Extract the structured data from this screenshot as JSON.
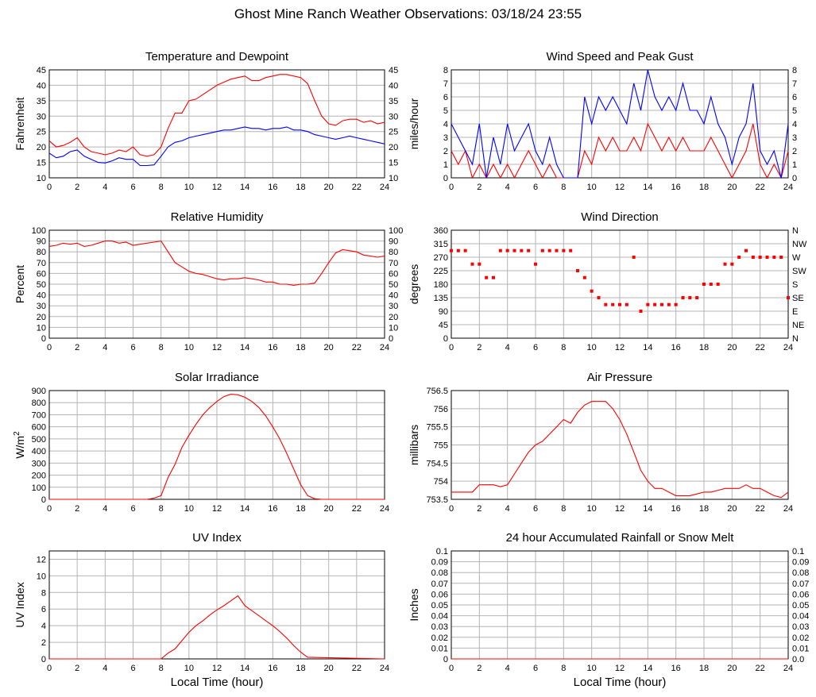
{
  "page_title": "Ghost Mine Ranch Weather Observations: 03/18/24 23:55",
  "x_axis": {
    "label": "Local Time (hour)",
    "ticks": [
      0,
      2,
      4,
      6,
      8,
      10,
      12,
      14,
      16,
      18,
      20,
      22,
      24
    ]
  },
  "colors": {
    "series_red": "#ff0000",
    "series_blue": "#0000ff",
    "grid": "#b4b4b4"
  },
  "chart_data": [
    {
      "id": "temperature",
      "type": "line",
      "title": "Temperature and Dewpoint",
      "ylabel": "Fahrenheit",
      "ylim": [
        10,
        45
      ],
      "yticks": [
        10,
        15,
        20,
        25,
        30,
        35,
        40,
        45
      ],
      "right_ticks": [
        "10",
        "15",
        "20",
        "25",
        "30",
        "35",
        "40",
        "45"
      ],
      "series": [
        {
          "name": "Temperature",
          "color": "#ff0000",
          "x": [
            0,
            0.5,
            1,
            1.5,
            2,
            2.5,
            3,
            3.5,
            4,
            4.5,
            5,
            5.5,
            6,
            6.5,
            7,
            7.5,
            8,
            8.5,
            9,
            9.5,
            10,
            10.5,
            11,
            11.5,
            12,
            12.5,
            13,
            13.5,
            14,
            14.5,
            15,
            15.5,
            16,
            16.5,
            17,
            17.5,
            18,
            18.5,
            19,
            19.5,
            20,
            20.5,
            21,
            21.5,
            22,
            22.5,
            23,
            23.5,
            24
          ],
          "y": [
            22,
            20,
            20.5,
            21.5,
            23,
            20,
            18.5,
            18,
            17.5,
            18,
            19,
            18.5,
            20,
            17.5,
            17,
            17.5,
            20,
            26,
            31,
            31,
            35,
            35.5,
            37,
            38.5,
            40,
            41,
            42,
            42.5,
            43,
            41.5,
            41.5,
            42.5,
            43,
            43.5,
            43.5,
            43,
            42.5,
            40.5,
            35,
            30,
            27.5,
            27,
            28.5,
            29,
            29,
            28,
            28.5,
            27.5,
            28
          ]
        },
        {
          "name": "Dewpoint",
          "color": "#0000ff",
          "x": [
            0,
            0.5,
            1,
            1.5,
            2,
            2.5,
            3,
            3.5,
            4,
            4.5,
            5,
            5.5,
            6,
            6.5,
            7,
            7.5,
            8,
            8.5,
            9,
            9.5,
            10,
            10.5,
            11,
            11.5,
            12,
            12.5,
            13,
            13.5,
            14,
            14.5,
            15,
            15.5,
            16,
            16.5,
            17,
            17.5,
            18,
            18.5,
            19,
            19.5,
            20,
            20.5,
            21,
            21.5,
            22,
            22.5,
            23,
            23.5,
            24
          ],
          "y": [
            18,
            16.5,
            17,
            18.5,
            19,
            17,
            16,
            15,
            14.8,
            15.5,
            16.5,
            16,
            16,
            14,
            14,
            14.2,
            17,
            20,
            21.5,
            22,
            23,
            23.5,
            24,
            24.5,
            25,
            25.5,
            25.5,
            26,
            26.5,
            26,
            26,
            25.5,
            26,
            26,
            26.5,
            25.5,
            25.5,
            25,
            24,
            23.5,
            23,
            22.5,
            23,
            23.5,
            23,
            22.5,
            22,
            21.5,
            21
          ]
        }
      ]
    },
    {
      "id": "wind-speed",
      "type": "line",
      "title": "Wind Speed and Peak Gust",
      "ylabel": "miles/hour",
      "ylim": [
        0,
        8
      ],
      "yticks": [
        0,
        1,
        2,
        3,
        4,
        5,
        6,
        7,
        8
      ],
      "right_ticks": [
        "0",
        "1",
        "2",
        "3",
        "4",
        "5",
        "6",
        "7",
        "8"
      ],
      "series": [
        {
          "name": "Wind Speed",
          "color": "#ff0000",
          "x": [
            0,
            0.5,
            1,
            1.5,
            2,
            2.5,
            3,
            3.5,
            4,
            4.5,
            5,
            5.5,
            6,
            6.5,
            7,
            7.5,
            8,
            8.5,
            9,
            9.5,
            10,
            10.5,
            11,
            11.5,
            12,
            12.5,
            13,
            13.5,
            14,
            14.5,
            15,
            15.5,
            16,
            16.5,
            17,
            17.5,
            18,
            18.5,
            19,
            19.5,
            20,
            20.5,
            21,
            21.5,
            22,
            22.5,
            23,
            23.5,
            24
          ],
          "y": [
            2,
            1,
            2,
            0,
            1,
            0,
            1,
            0,
            1,
            0,
            1,
            2,
            1,
            0,
            1,
            0,
            0,
            0,
            0,
            2,
            1,
            3,
            2,
            3,
            2,
            2,
            3,
            2,
            4,
            3,
            2,
            3,
            2,
            3,
            2,
            2,
            2,
            3,
            2,
            1,
            0,
            1,
            2,
            4,
            1,
            0,
            1,
            0,
            2
          ]
        },
        {
          "name": "Peak Gust",
          "color": "#0000ff",
          "x": [
            0,
            0.5,
            1,
            1.5,
            2,
            2.5,
            3,
            3.5,
            4,
            4.5,
            5,
            5.5,
            6,
            6.5,
            7,
            7.5,
            8,
            8.5,
            9,
            9.5,
            10,
            10.5,
            11,
            11.5,
            12,
            12.5,
            13,
            13.5,
            14,
            14.5,
            15,
            15.5,
            16,
            16.5,
            17,
            17.5,
            18,
            18.5,
            19,
            19.5,
            20,
            20.5,
            21,
            21.5,
            22,
            22.5,
            23,
            23.5,
            24
          ],
          "y": [
            4,
            3,
            2,
            1,
            4,
            0,
            3,
            1,
            4,
            2,
            3,
            4,
            2,
            1,
            3,
            1,
            0,
            0,
            0,
            6,
            4,
            6,
            5,
            6,
            5,
            4,
            7,
            5,
            8,
            6,
            5,
            6,
            5,
            7,
            5,
            5,
            4,
            6,
            4,
            3,
            1,
            3,
            4,
            7,
            2,
            1,
            2,
            0,
            4
          ]
        }
      ]
    },
    {
      "id": "humidity",
      "type": "line",
      "title": "Relative Humidity",
      "ylabel": "Percent",
      "ylim": [
        0,
        100
      ],
      "yticks": [
        0,
        10,
        20,
        30,
        40,
        50,
        60,
        70,
        80,
        90,
        100
      ],
      "right_ticks": [
        "0",
        "10",
        "20",
        "30",
        "40",
        "50",
        "60",
        "70",
        "80",
        "90",
        "100"
      ],
      "series": [
        {
          "name": "Relative Humidity",
          "color": "#ff0000",
          "x": [
            0,
            0.5,
            1,
            1.5,
            2,
            2.5,
            3,
            3.5,
            4,
            4.5,
            5,
            5.5,
            6,
            6.5,
            7,
            7.5,
            8,
            8.5,
            9,
            9.5,
            10,
            10.5,
            11,
            11.5,
            12,
            12.5,
            13,
            13.5,
            14,
            14.5,
            15,
            15.5,
            16,
            16.5,
            17,
            17.5,
            18,
            18.5,
            19,
            19.5,
            20,
            20.5,
            21,
            21.5,
            22,
            22.5,
            23,
            23.5,
            24
          ],
          "y": [
            85,
            86,
            88,
            87,
            88,
            85,
            86,
            88,
            90,
            90,
            88,
            89,
            86,
            87,
            88,
            89,
            90,
            80,
            70,
            66,
            62,
            60,
            59,
            57,
            55,
            54,
            55,
            55,
            56,
            55,
            54,
            52,
            52,
            50,
            50,
            49,
            50,
            50,
            51,
            60,
            70,
            79,
            82,
            81,
            80,
            77,
            76,
            75,
            76
          ]
        }
      ]
    },
    {
      "id": "wind-direction",
      "type": "scatter",
      "title": "Wind Direction",
      "ylabel": "degrees",
      "ylim": [
        0,
        360
      ],
      "yticks": [
        0,
        45,
        90,
        135,
        180,
        225,
        270,
        315,
        360
      ],
      "right_ticks": [
        "N",
        "NE",
        "E",
        "SE",
        "S",
        "SW",
        "W",
        "NW",
        "N"
      ],
      "series": [
        {
          "name": "Wind Direction",
          "color": "#ff0000",
          "x": [
            0,
            0.5,
            1,
            1.5,
            2,
            2.5,
            3,
            3.5,
            4,
            4.5,
            5,
            5.5,
            6,
            6.5,
            7,
            7.5,
            8,
            8.5,
            9,
            9.5,
            10,
            10.5,
            11,
            11.5,
            12,
            12.5,
            13,
            13.5,
            14,
            14.5,
            15,
            15.5,
            16,
            16.5,
            17,
            17.5,
            18,
            18.5,
            19,
            19.5,
            20,
            20.5,
            21,
            21.5,
            22,
            22.5,
            23,
            23.5,
            24
          ],
          "y": [
            292,
            292,
            292,
            247,
            247,
            202,
            202,
            292,
            292,
            292,
            292,
            292,
            247,
            292,
            292,
            292,
            292,
            292,
            225,
            202,
            157,
            135,
            112,
            112,
            112,
            112,
            270,
            90,
            112,
            112,
            112,
            112,
            112,
            135,
            135,
            135,
            180,
            180,
            180,
            247,
            247,
            270,
            292,
            270,
            270,
            270,
            270,
            270,
            135
          ]
        }
      ]
    },
    {
      "id": "solar",
      "type": "line",
      "title": "Solar Irradiance",
      "ylabel": "W/m",
      "ylabel_sup": "2",
      "ylim": [
        0,
        900
      ],
      "yticks": [
        0,
        100,
        200,
        300,
        400,
        500,
        600,
        700,
        800,
        900
      ],
      "right_ticks": [],
      "series": [
        {
          "name": "Solar Irradiance",
          "color": "#ff0000",
          "x": [
            0,
            7,
            7.5,
            8,
            8.5,
            9,
            9.5,
            10,
            10.5,
            11,
            11.5,
            12,
            12.5,
            13,
            13.5,
            14,
            14.5,
            15,
            15.5,
            16,
            16.5,
            17,
            17.5,
            18,
            18.5,
            19,
            19.5,
            20,
            24
          ],
          "y": [
            0,
            0,
            10,
            30,
            180,
            290,
            430,
            530,
            620,
            700,
            760,
            810,
            850,
            870,
            865,
            845,
            810,
            760,
            690,
            600,
            500,
            380,
            250,
            120,
            30,
            5,
            0,
            0,
            0
          ]
        }
      ]
    },
    {
      "id": "pressure",
      "type": "line",
      "title": "Air Pressure",
      "ylabel": "millibars",
      "ylim": [
        753.5,
        756.5
      ],
      "yticks": [
        753.5,
        754,
        754.5,
        755,
        755.5,
        756,
        756.5
      ],
      "right_ticks": [],
      "series": [
        {
          "name": "Air Pressure",
          "color": "#ff0000",
          "x": [
            0,
            0.5,
            1,
            1.5,
            2,
            2.5,
            3,
            3.5,
            4,
            4.5,
            5,
            5.5,
            6,
            6.5,
            7,
            7.5,
            8,
            8.5,
            9,
            9.5,
            10,
            10.5,
            11,
            11.5,
            12,
            12.5,
            13,
            13.5,
            14,
            14.5,
            15,
            15.5,
            16,
            16.5,
            17,
            17.5,
            18,
            18.5,
            19,
            19.5,
            20,
            20.5,
            21,
            21.5,
            22,
            22.5,
            23,
            23.5,
            24
          ],
          "y": [
            753.7,
            753.7,
            753.7,
            753.7,
            753.9,
            753.9,
            753.9,
            753.85,
            753.9,
            754.2,
            754.5,
            754.8,
            755.0,
            755.1,
            755.3,
            755.5,
            755.7,
            755.6,
            755.9,
            756.1,
            756.2,
            756.2,
            756.2,
            756.0,
            755.7,
            755.3,
            754.8,
            754.3,
            754.0,
            753.8,
            753.8,
            753.7,
            753.6,
            753.6,
            753.6,
            753.65,
            753.7,
            753.7,
            753.75,
            753.8,
            753.8,
            753.8,
            753.9,
            753.8,
            753.8,
            753.7,
            753.6,
            753.55,
            753.7
          ]
        }
      ]
    },
    {
      "id": "uv",
      "type": "line",
      "title": "UV Index",
      "ylabel": "UV Index",
      "ylim": [
        0,
        13
      ],
      "yticks": [
        0,
        2,
        4,
        6,
        8,
        10,
        12
      ],
      "right_ticks": [],
      "series": [
        {
          "name": "UV Index",
          "color": "#ff0000",
          "x": [
            0,
            8,
            8.5,
            9,
            9.5,
            10,
            10.5,
            11,
            11.5,
            12,
            12.5,
            13,
            13.5,
            14,
            14.5,
            15,
            15.5,
            16,
            16.5,
            17,
            17.5,
            18,
            18.5,
            24
          ],
          "y": [
            0,
            0,
            0.7,
            1.2,
            2.2,
            3.2,
            4,
            4.6,
            5.3,
            5.9,
            6.4,
            7,
            7.6,
            6.4,
            5.8,
            5.2,
            4.6,
            4.0,
            3.3,
            2.5,
            1.6,
            0.8,
            0.2,
            0
          ]
        }
      ]
    },
    {
      "id": "rainfall",
      "type": "line",
      "title": "24 hour Accumulated Rainfall or Snow Melt",
      "ylabel": "Inches",
      "ylim": [
        0,
        0.1
      ],
      "yticks": [
        0,
        0.01,
        0.02,
        0.03,
        0.04,
        0.05,
        0.06,
        0.07,
        0.08,
        0.09,
        0.1
      ],
      "right_ticks": [
        "0.0",
        "0.01",
        "0.02",
        "0.03",
        "0.04",
        "0.05",
        "0.06",
        "0.07",
        "0.08",
        "0.09",
        "0.1"
      ],
      "series": [
        {
          "name": "Rainfall",
          "color": "#ff0000",
          "x": [
            0,
            24
          ],
          "y": [
            0,
            0
          ]
        }
      ]
    }
  ]
}
